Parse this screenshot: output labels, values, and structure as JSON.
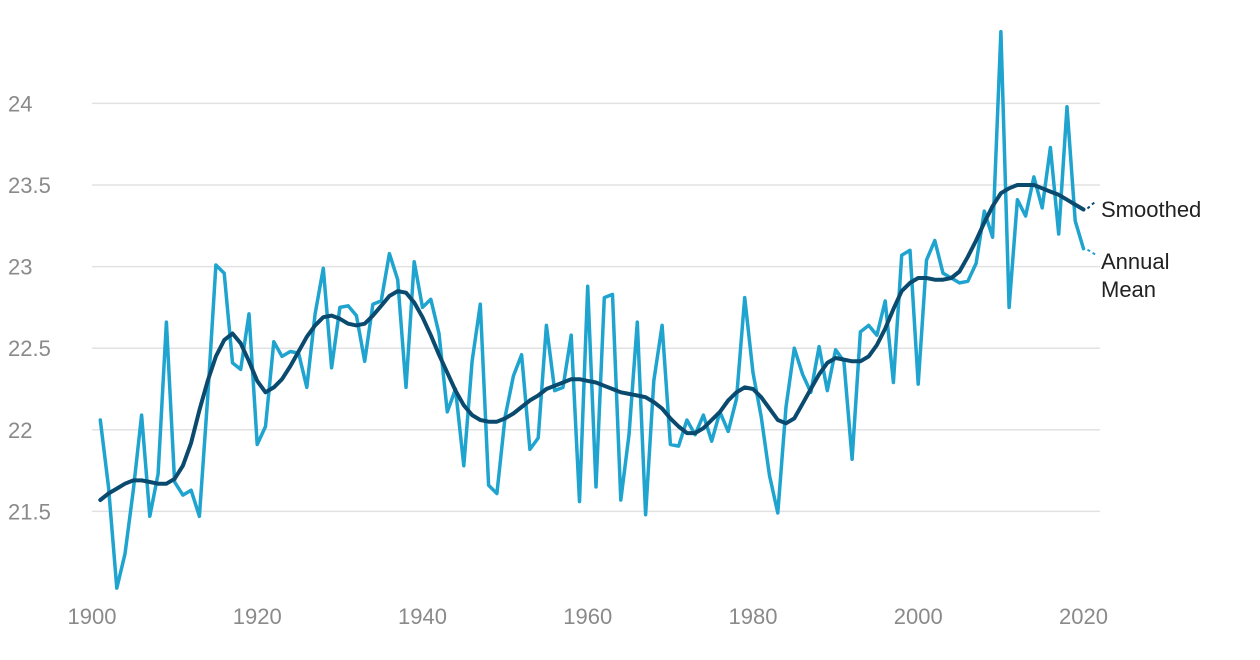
{
  "chart_data": {
    "type": "line",
    "title": "",
    "xlabel": "",
    "ylabel": "",
    "xlim": [
      1900,
      2022
    ],
    "ylim": [
      21,
      24.45
    ],
    "grid": "horizontal",
    "legend": "right-end-labels",
    "x_ticks": [
      "1900",
      "1920",
      "1940",
      "1960",
      "1980",
      "2000",
      "2020"
    ],
    "y_ticks": [
      "21.5",
      "22",
      "22.5",
      "23",
      "23.5",
      "24"
    ],
    "colors": {
      "annual": "#1fa3cf",
      "smoothed": "#0b4a6f",
      "grid": "#e2e2e2",
      "tick": "#8a8a8a"
    },
    "series": [
      {
        "name": "Annual Mean",
        "label_lines": [
          "Annual",
          "Mean"
        ],
        "x": [
          1901,
          1902,
          1903,
          1904,
          1905,
          1906,
          1907,
          1908,
          1909,
          1910,
          1911,
          1912,
          1913,
          1914,
          1915,
          1916,
          1917,
          1918,
          1919,
          1920,
          1921,
          1922,
          1923,
          1924,
          1925,
          1926,
          1927,
          1928,
          1929,
          1930,
          1931,
          1932,
          1933,
          1934,
          1935,
          1936,
          1937,
          1938,
          1939,
          1940,
          1941,
          1942,
          1943,
          1944,
          1945,
          1946,
          1947,
          1948,
          1949,
          1950,
          1951,
          1952,
          1953,
          1954,
          1955,
          1956,
          1957,
          1958,
          1959,
          1960,
          1961,
          1962,
          1963,
          1964,
          1965,
          1966,
          1967,
          1968,
          1969,
          1970,
          1971,
          1972,
          1973,
          1974,
          1975,
          1976,
          1977,
          1978,
          1979,
          1980,
          1981,
          1982,
          1983,
          1984,
          1985,
          1986,
          1987,
          1988,
          1989,
          1990,
          1991,
          1992,
          1993,
          1994,
          1995,
          1996,
          1997,
          1998,
          1999,
          2000,
          2001,
          2002,
          2003,
          2004,
          2005,
          2006,
          2007,
          2008,
          2009,
          2010,
          2011,
          2012,
          2013,
          2014,
          2015,
          2016,
          2017,
          2018,
          2019,
          2020
        ],
        "values": [
          22.06,
          21.65,
          21.03,
          21.24,
          21.63,
          22.09,
          21.47,
          21.73,
          22.66,
          21.68,
          21.6,
          21.63,
          21.47,
          22.2,
          23.01,
          22.96,
          22.41,
          22.37,
          22.71,
          21.91,
          22.02,
          22.54,
          22.45,
          22.48,
          22.47,
          22.26,
          22.71,
          22.99,
          22.38,
          22.75,
          22.76,
          22.7,
          22.42,
          22.77,
          22.79,
          23.08,
          22.92,
          22.26,
          23.03,
          22.75,
          22.8,
          22.59,
          22.11,
          22.25,
          21.78,
          22.42,
          22.77,
          21.66,
          21.61,
          22.08,
          22.33,
          22.46,
          21.88,
          21.95,
          22.64,
          22.24,
          22.26,
          22.58,
          21.56,
          22.88,
          21.65,
          22.81,
          22.83,
          21.57,
          21.97,
          22.66,
          21.48,
          22.3,
          22.64,
          21.91,
          21.9,
          22.06,
          21.97,
          22.09,
          21.93,
          22.11,
          21.99,
          22.19,
          22.81,
          22.35,
          22.08,
          21.72,
          21.49,
          22.14,
          22.5,
          22.34,
          22.23,
          22.51,
          22.24,
          22.49,
          22.42,
          21.82,
          22.6,
          22.64,
          22.58,
          22.79,
          22.29,
          23.07,
          23.1,
          22.28,
          23.04,
          23.16,
          22.96,
          22.93,
          22.9,
          22.91,
          23.02,
          23.34,
          23.18,
          24.44,
          22.75,
          23.41,
          23.31,
          23.55,
          23.36,
          23.73,
          23.2,
          23.98,
          23.28,
          23.11
        ]
      },
      {
        "name": "Smoothed",
        "label_lines": [
          "Smoothed"
        ],
        "x": [
          1901,
          1902,
          1903,
          1904,
          1905,
          1906,
          1907,
          1908,
          1909,
          1910,
          1911,
          1912,
          1913,
          1914,
          1915,
          1916,
          1917,
          1918,
          1919,
          1920,
          1921,
          1922,
          1923,
          1924,
          1925,
          1926,
          1927,
          1928,
          1929,
          1930,
          1931,
          1932,
          1933,
          1934,
          1935,
          1936,
          1937,
          1938,
          1939,
          1940,
          1941,
          1942,
          1943,
          1944,
          1945,
          1946,
          1947,
          1948,
          1949,
          1950,
          1951,
          1952,
          1953,
          1954,
          1955,
          1956,
          1957,
          1958,
          1959,
          1960,
          1961,
          1962,
          1963,
          1964,
          1965,
          1966,
          1967,
          1968,
          1969,
          1970,
          1971,
          1972,
          1973,
          1974,
          1975,
          1976,
          1977,
          1978,
          1979,
          1980,
          1981,
          1982,
          1983,
          1984,
          1985,
          1986,
          1987,
          1988,
          1989,
          1990,
          1991,
          1992,
          1993,
          1994,
          1995,
          1996,
          1997,
          1998,
          1999,
          2000,
          2001,
          2002,
          2003,
          2004,
          2005,
          2006,
          2007,
          2008,
          2009,
          2010,
          2011,
          2012,
          2013,
          2014,
          2015,
          2016,
          2017,
          2018,
          2019,
          2020
        ],
        "values": [
          21.57,
          21.61,
          21.64,
          21.67,
          21.69,
          21.69,
          21.68,
          21.67,
          21.67,
          21.7,
          21.78,
          21.92,
          22.12,
          22.3,
          22.45,
          22.55,
          22.59,
          22.53,
          22.42,
          22.3,
          22.23,
          22.26,
          22.31,
          22.39,
          22.48,
          22.57,
          22.64,
          22.69,
          22.7,
          22.68,
          22.65,
          22.64,
          22.65,
          22.7,
          22.76,
          22.82,
          22.85,
          22.84,
          22.78,
          22.69,
          22.58,
          22.46,
          22.35,
          22.24,
          22.15,
          22.09,
          22.06,
          22.05,
          22.05,
          22.07,
          22.1,
          22.14,
          22.18,
          22.21,
          22.25,
          22.27,
          22.29,
          22.31,
          22.31,
          22.3,
          22.29,
          22.27,
          22.25,
          22.23,
          22.22,
          22.21,
          22.2,
          22.17,
          22.13,
          22.07,
          22.02,
          21.98,
          21.98,
          22.01,
          22.06,
          22.11,
          22.18,
          22.23,
          22.26,
          22.25,
          22.2,
          22.13,
          22.06,
          22.04,
          22.07,
          22.16,
          22.25,
          22.34,
          22.41,
          22.44,
          22.43,
          22.42,
          22.42,
          22.45,
          22.52,
          22.62,
          22.74,
          22.85,
          22.9,
          22.93,
          22.93,
          22.92,
          22.92,
          22.93,
          22.97,
          23.06,
          23.16,
          23.27,
          23.37,
          23.45,
          23.48,
          23.5,
          23.5,
          23.5,
          23.48,
          23.46,
          23.44,
          23.41,
          23.38,
          23.35
        ]
      }
    ]
  }
}
